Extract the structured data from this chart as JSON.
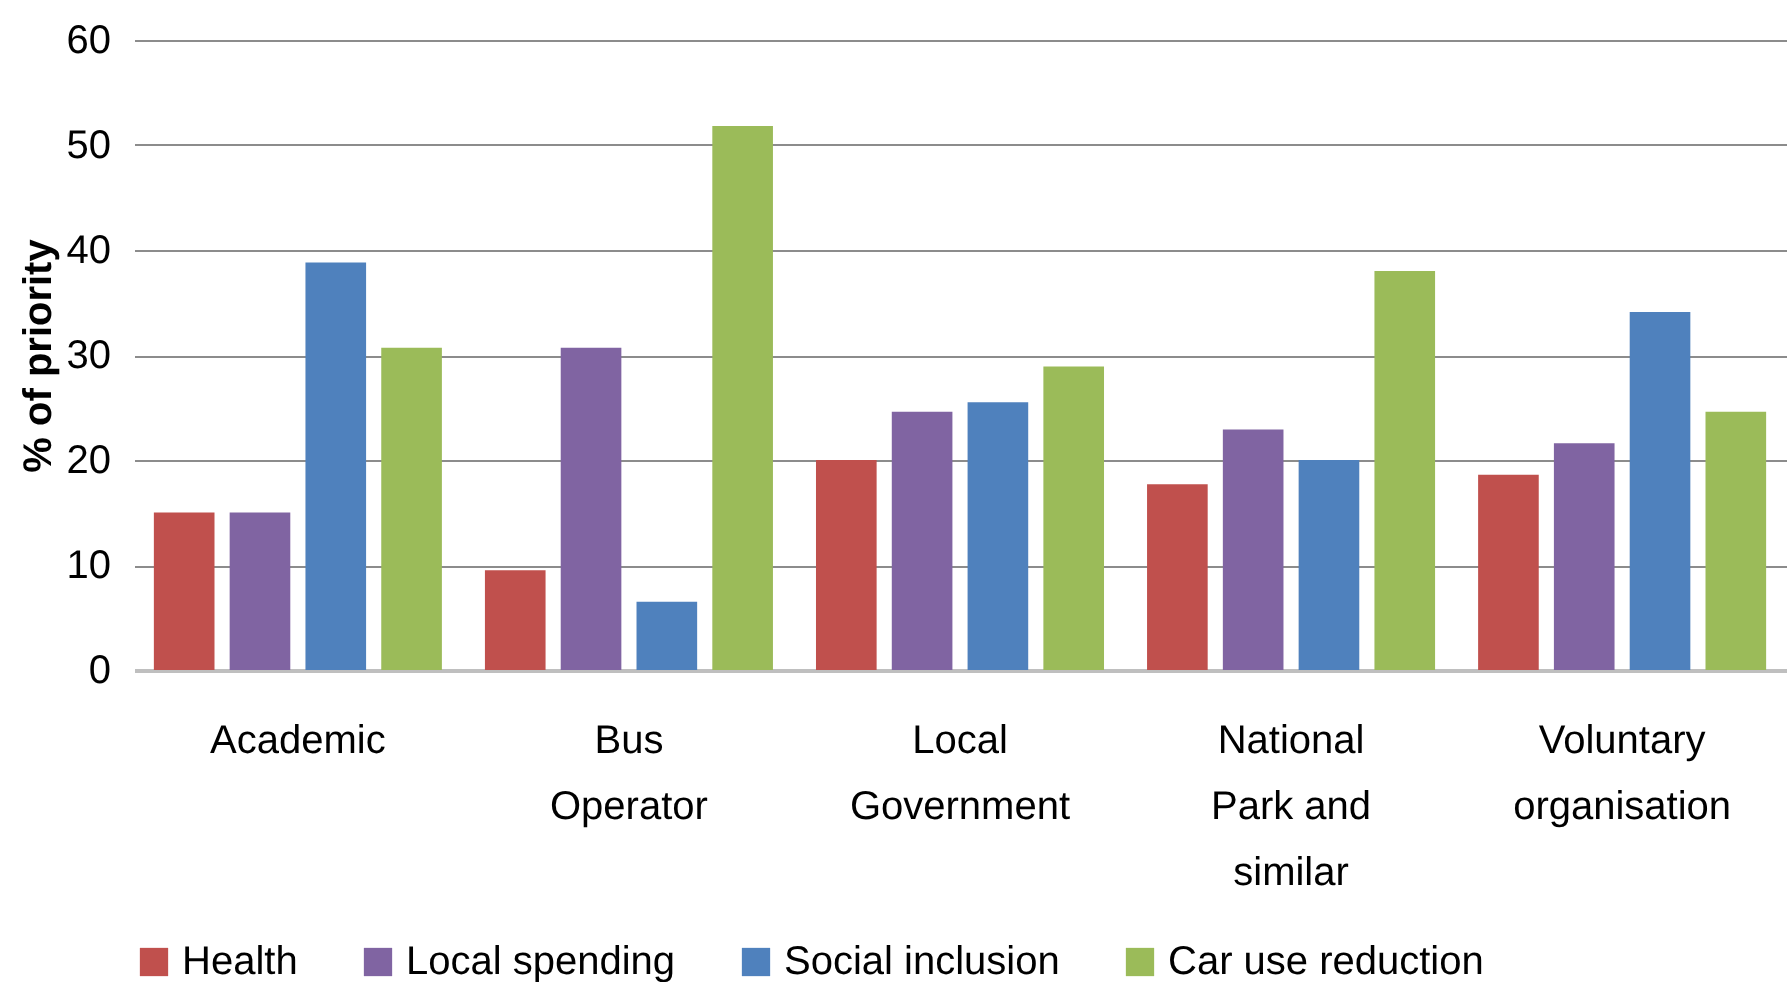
{
  "chart_data": {
    "type": "bar",
    "ylabel": "% of priority",
    "categories": [
      "Academic",
      "Bus Operator",
      "Local Government",
      "National Park and similar",
      "Voluntary organisation"
    ],
    "series": [
      {
        "name": "Health",
        "color": "#c0504d",
        "values": [
          15,
          9.5,
          20,
          17.7,
          18.6
        ]
      },
      {
        "name": "Local spending",
        "color": "#8064a2",
        "values": [
          15,
          30.7,
          24.6,
          22.9,
          21.6
        ]
      },
      {
        "name": "Social inclusion",
        "color": "#4f81bd",
        "values": [
          38.8,
          6.5,
          25.5,
          20,
          34.1
        ]
      },
      {
        "name": "Car use reduction",
        "color": "#9bbb59",
        "values": [
          30.7,
          51.8,
          28.9,
          38,
          24.6
        ]
      }
    ],
    "ylim": [
      0,
      60
    ],
    "yticks": [
      0,
      10,
      20,
      30,
      40,
      50,
      60
    ],
    "grid": "y",
    "legend": "bottom"
  }
}
